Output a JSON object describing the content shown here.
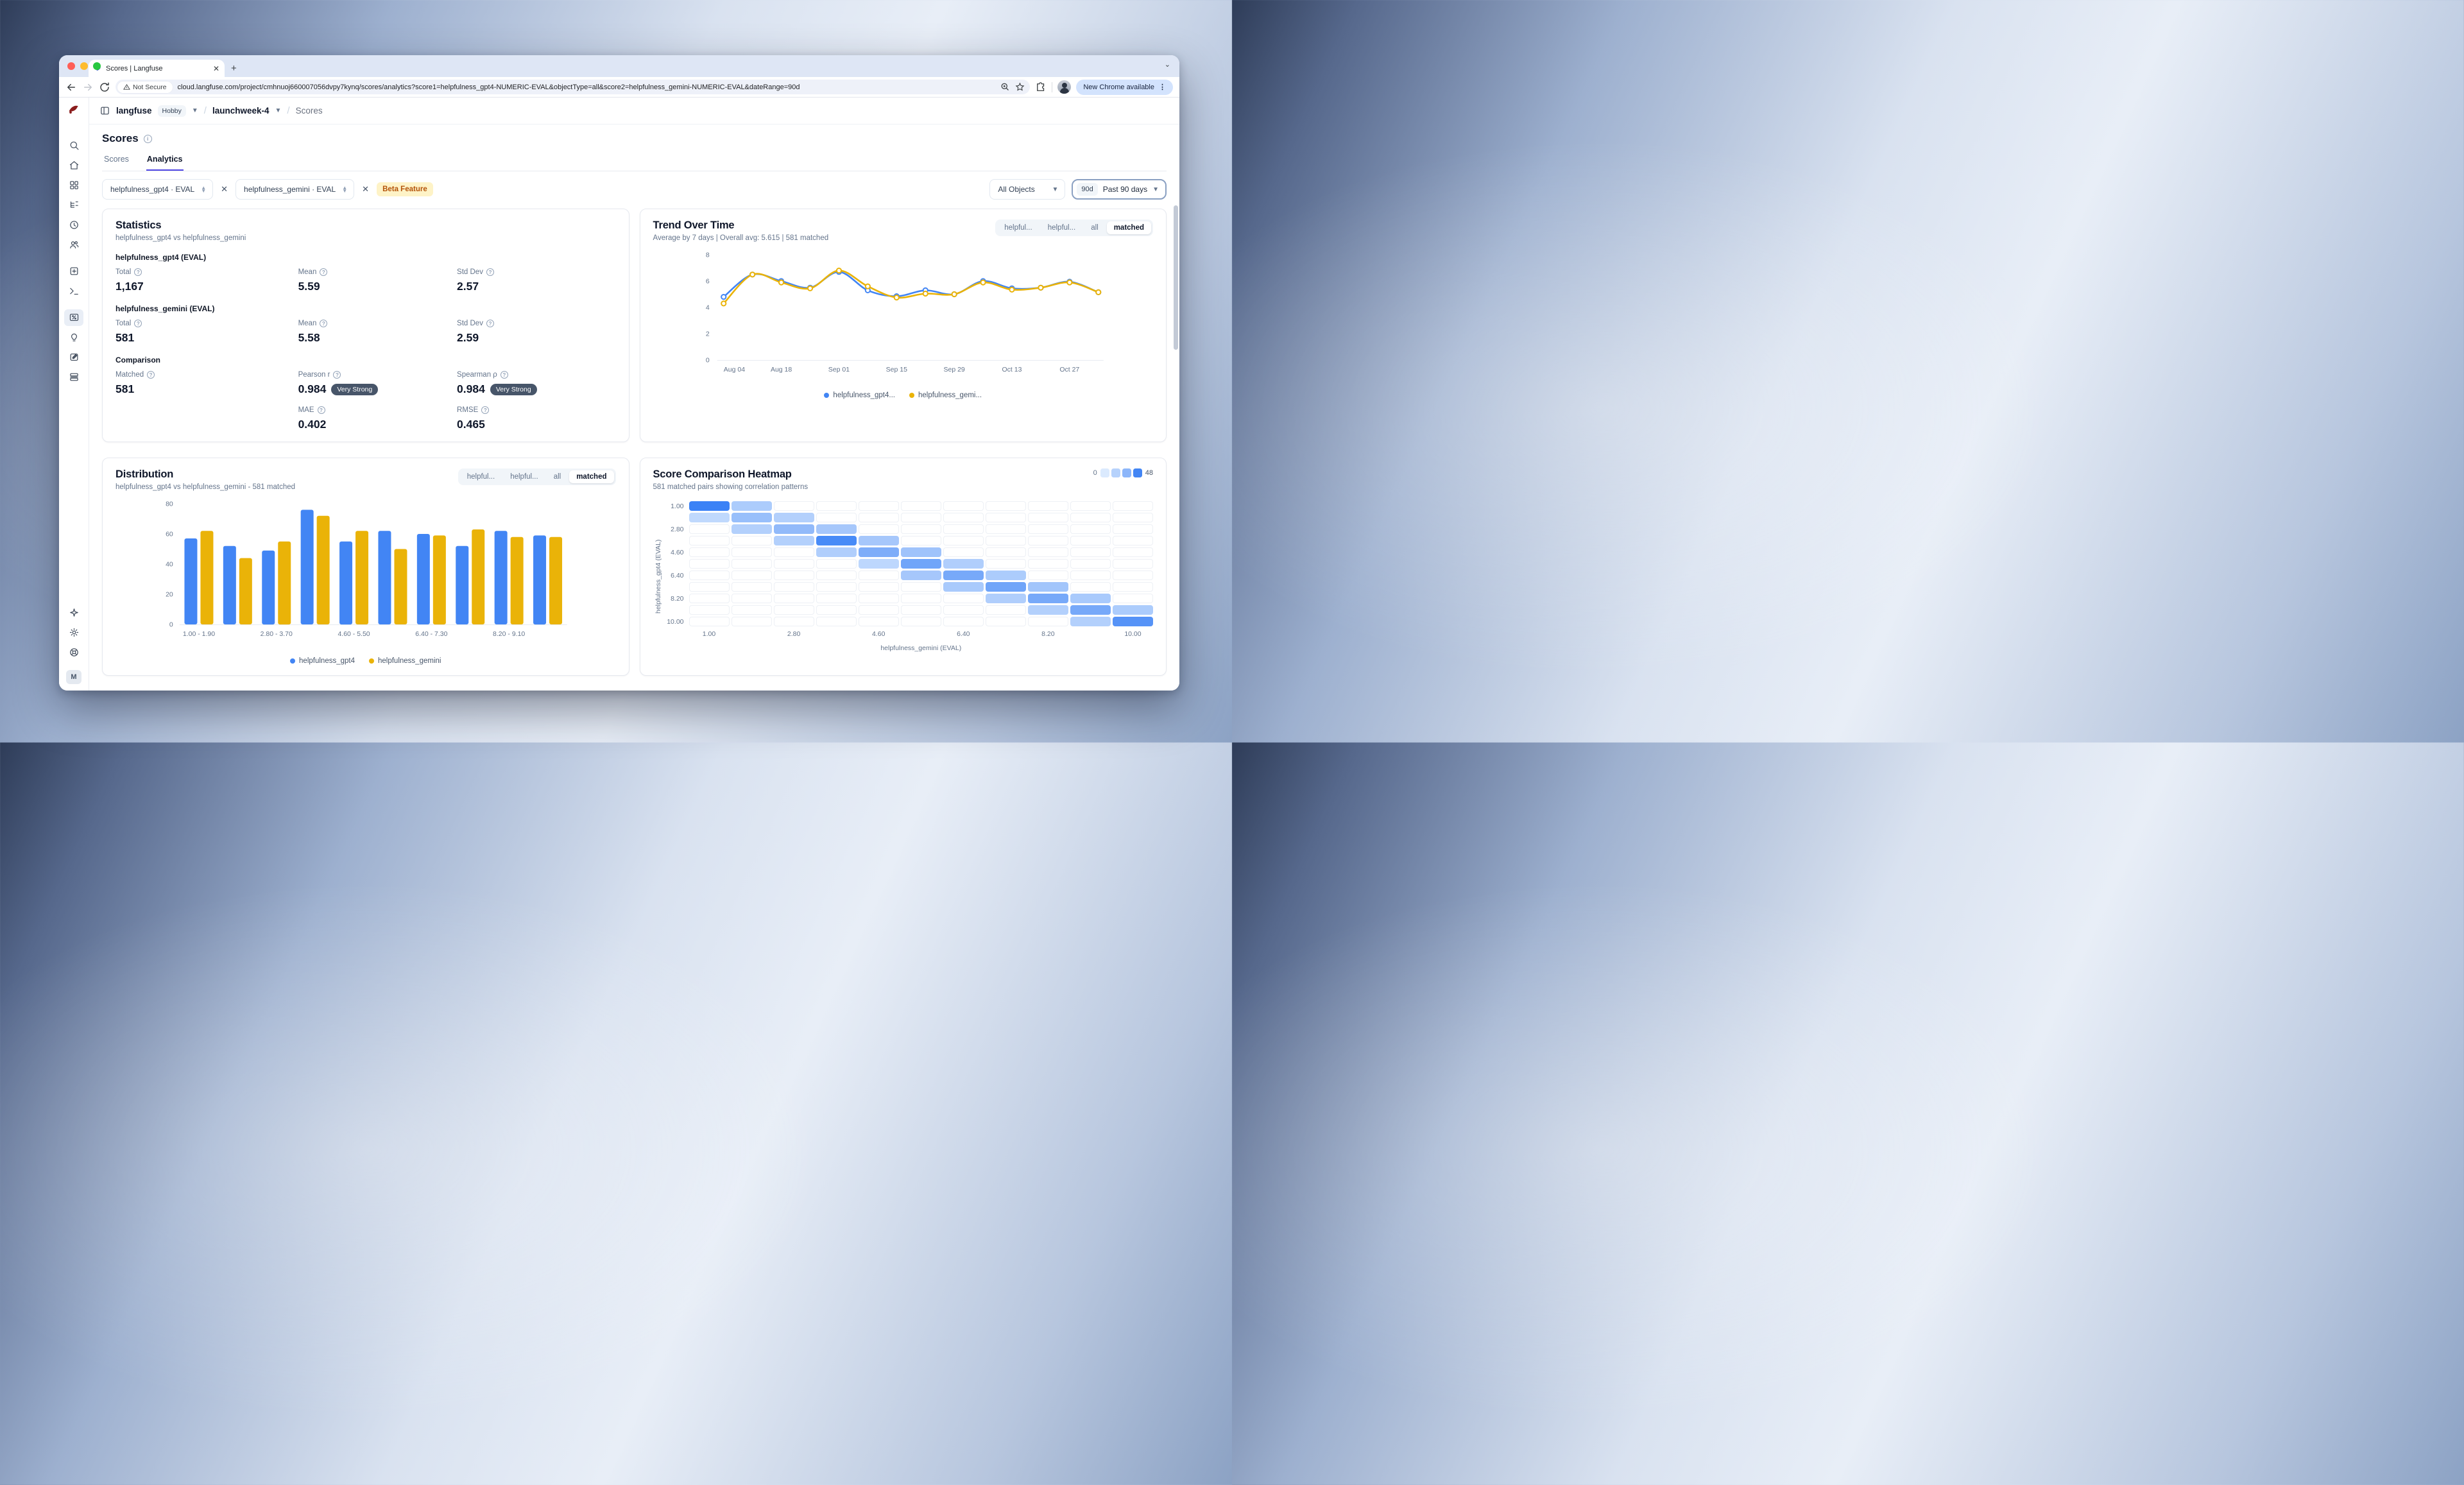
{
  "browser": {
    "tab_title": "Scores | Langfuse",
    "security_label": "Not Secure",
    "url": "cloud.langfuse.com/project/cmhnuoj660007056dvpy7kynq/scores/analytics?score1=helpfulness_gpt4-NUMERIC-EVAL&objectType=all&score2=helpfulness_gemini-NUMERIC-EVAL&dateRange=90d",
    "update_button": "New Chrome available"
  },
  "sidebar": {
    "icons": [
      "search",
      "home",
      "dashboards",
      "tracing",
      "sessions",
      "users",
      "prompts",
      "playground",
      "scores",
      "evaluators",
      "datasets",
      "tables"
    ],
    "active_icon": "scores",
    "bottom_icons": [
      "sparkle",
      "settings",
      "support"
    ],
    "avatar_initial": "M"
  },
  "breadcrumb": {
    "org": "langfuse",
    "plan_badge": "Hobby",
    "project": "launchweek-4",
    "page": "Scores"
  },
  "page": {
    "title": "Scores",
    "tabs": [
      {
        "label": "Scores",
        "active": false
      },
      {
        "label": "Analytics",
        "active": true
      }
    ]
  },
  "filters": {
    "score1": "helpfulness_gpt4 · EVAL",
    "score2": "helpfulness_gemini · EVAL",
    "beta_badge": "Beta Feature",
    "object_select": "All Objects",
    "date_badge": "90d",
    "date_label": "Past 90 days"
  },
  "panels": {
    "statistics": {
      "title": "Statistics",
      "subtitle": "helpfulness_gpt4 vs helpfulness_gemini",
      "sections": [
        {
          "heading": "helpfulness_gpt4 (EVAL)",
          "stats": [
            {
              "label": "Total",
              "value": "1,167"
            },
            {
              "label": "Mean",
              "value": "5.59"
            },
            {
              "label": "Std Dev",
              "value": "2.57"
            }
          ]
        },
        {
          "heading": "helpfulness_gemini (EVAL)",
          "stats": [
            {
              "label": "Total",
              "value": "581"
            },
            {
              "label": "Mean",
              "value": "5.58"
            },
            {
              "label": "Std Dev",
              "value": "2.59"
            }
          ]
        },
        {
          "heading": "Comparison",
          "stats": [
            {
              "label": "Matched",
              "value": "581"
            },
            {
              "label": "Pearson r",
              "value": "0.984",
              "badge": "Very Strong"
            },
            {
              "label": "Spearman ρ",
              "value": "0.984",
              "badge": "Very Strong"
            },
            {
              "label": "MAE",
              "value": "0.402"
            },
            {
              "label": "RMSE",
              "value": "0.465"
            }
          ]
        }
      ]
    },
    "trend": {
      "title": "Trend Over Time",
      "subtitle": "Average by 7 days | Overall avg: 5.615 | 581 matched",
      "view_tabs": [
        "helpful...",
        "helpful...",
        "all",
        "matched"
      ],
      "selected_tab": "matched"
    },
    "distribution": {
      "title": "Distribution",
      "subtitle": "helpfulness_gpt4 vs helpfulness_gemini - 581 matched",
      "view_tabs": [
        "helpful...",
        "helpful...",
        "all",
        "matched"
      ],
      "selected_tab": "matched"
    },
    "heatmap": {
      "title": "Score Comparison Heatmap",
      "subtitle": "581 matched pairs showing correlation patterns",
      "scale_min": "0",
      "scale_max": "48"
    }
  },
  "chart_data": [
    {
      "id": "trend",
      "type": "line",
      "title": "Trend Over Time",
      "x": [
        "Aug 04",
        "Aug 11",
        "Aug 18",
        "Aug 25",
        "Sep 01",
        "Sep 08",
        "Sep 15",
        "Sep 22",
        "Sep 29",
        "Oct 06",
        "Oct 13",
        "Oct 20",
        "Oct 27",
        "Nov 03"
      ],
      "x_tick_indices": [
        0,
        2,
        4,
        6,
        8,
        10,
        12
      ],
      "x_tick_labels": [
        "Aug 04",
        "Aug 18",
        "Sep 01",
        "Sep 15",
        "Sep 29",
        "Oct 13",
        "Oct 27"
      ],
      "ylim": [
        0,
        8
      ],
      "yticks": [
        0,
        2,
        4,
        6,
        8
      ],
      "series": [
        {
          "name": "helpfulness_gpt4...",
          "color": "#4285f4",
          "values": [
            4.8,
            6.5,
            6.0,
            5.5,
            6.7,
            5.3,
            4.85,
            5.3,
            5.0,
            6.0,
            5.45,
            5.5,
            5.95,
            5.15
          ]
        },
        {
          "name": "helpfulness_gemi...",
          "color": "#eab308",
          "values": [
            4.3,
            6.5,
            5.9,
            5.45,
            6.8,
            5.6,
            4.75,
            5.05,
            5.0,
            5.9,
            5.35,
            5.5,
            5.9,
            5.15
          ]
        }
      ]
    },
    {
      "id": "distribution",
      "type": "bar",
      "categories": [
        "1.00 - 1.90",
        "1.90 - 2.80",
        "2.80 - 3.70",
        "3.70 - 4.60",
        "4.60 - 5.50",
        "5.50 - 6.40",
        "6.40 - 7.30",
        "7.30 - 8.20",
        "8.20 - 9.10",
        "9.10 - 10.00"
      ],
      "x_tick_indices": [
        0,
        2,
        4,
        6,
        8
      ],
      "ylim": [
        0,
        80
      ],
      "yticks": [
        0,
        20,
        40,
        60,
        80
      ],
      "series": [
        {
          "name": "helpfulness_gpt4",
          "color": "#4285f4",
          "values": [
            57,
            52,
            49,
            76,
            55,
            62,
            60,
            52,
            62,
            59
          ]
        },
        {
          "name": "helpfulness_gemini",
          "color": "#eab308",
          "values": [
            62,
            44,
            55,
            72,
            62,
            50,
            59,
            63,
            58,
            58
          ]
        }
      ]
    },
    {
      "id": "heatmap",
      "type": "heatmap",
      "xlabel": "helpfulness_gemini (EVAL)",
      "ylabel": "helpfulness_gpt4 (EVAL)",
      "x_labels": [
        "1.00",
        "1.90",
        "2.80",
        "3.70",
        "4.60",
        "5.50",
        "6.40",
        "7.30",
        "8.20",
        "9.10",
        "10.00"
      ],
      "y_labels": [
        "1.00",
        "1.90",
        "2.80",
        "3.70",
        "4.60",
        "5.50",
        "6.40",
        "7.30",
        "8.20",
        "9.10",
        "10.00"
      ],
      "label_indices": [
        0,
        2,
        4,
        6,
        8,
        10
      ],
      "scale": {
        "min": 0,
        "max": 48,
        "colors": [
          "#dbeafe",
          "#b6d2fc",
          "#8cb6fa",
          "#4285f4"
        ]
      },
      "matrix": [
        [
          48,
          14,
          0,
          0,
          0,
          0,
          0,
          0,
          0,
          0,
          0
        ],
        [
          8,
          20,
          12,
          0,
          0,
          0,
          0,
          0,
          0,
          0,
          0
        ],
        [
          0,
          12,
          22,
          16,
          0,
          0,
          0,
          0,
          0,
          0,
          0
        ],
        [
          0,
          0,
          12,
          44,
          16,
          0,
          0,
          0,
          0,
          0,
          0
        ],
        [
          0,
          0,
          0,
          13,
          28,
          18,
          0,
          0,
          0,
          0,
          0
        ],
        [
          0,
          0,
          0,
          0,
          9,
          32,
          13,
          0,
          0,
          0,
          0
        ],
        [
          0,
          0,
          0,
          0,
          0,
          16,
          30,
          14,
          0,
          0,
          0
        ],
        [
          0,
          0,
          0,
          0,
          0,
          0,
          15,
          32,
          17,
          0,
          0
        ],
        [
          0,
          0,
          0,
          0,
          0,
          0,
          0,
          13,
          30,
          15,
          0
        ],
        [
          0,
          0,
          0,
          0,
          0,
          0,
          0,
          0,
          12,
          30,
          14
        ],
        [
          0,
          0,
          0,
          0,
          0,
          0,
          0,
          0,
          0,
          12,
          40
        ]
      ]
    }
  ]
}
